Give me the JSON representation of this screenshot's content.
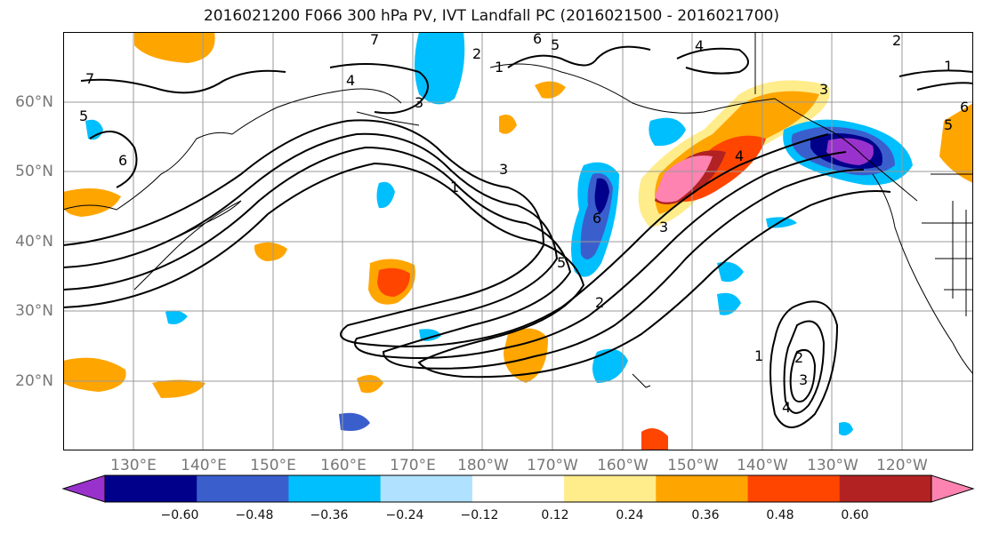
{
  "title": "2016021200 F066 300 hPa PV, IVT Landfall PC (2016021500 - 2016021700)",
  "lat_labels": [
    "60°N",
    "50°N",
    "40°N",
    "30°N",
    "20°N"
  ],
  "lon_labels": [
    "130°E",
    "140°E",
    "150°E",
    "160°E",
    "170°E",
    "180°W",
    "170°W",
    "160°W",
    "150°W",
    "140°W",
    "130°W",
    "120°W"
  ],
  "colorbar": {
    "colors": [
      "#9932CC",
      "#00008B",
      "#3A5FCD",
      "#00BFFF",
      "#B0E2FF",
      "#FFFFFF",
      "#FFEC8B",
      "#FFA500",
      "#FF4500",
      "#B22222",
      "#FF83B1"
    ],
    "tick_labels": [
      "−0.60",
      "−0.48",
      "−0.36",
      "−0.24",
      "−0.12",
      "0.12",
      "0.24",
      "0.36",
      "0.48",
      "0.60"
    ]
  },
  "contour_labels": [
    "7",
    "6",
    "5",
    "4",
    "3",
    "2",
    "1",
    "7",
    "6",
    "5",
    "4",
    "3",
    "2",
    "1",
    "6",
    "5",
    "4",
    "3",
    "2",
    "1",
    "4",
    "3",
    "2",
    "1",
    "3",
    "4",
    "5",
    "6"
  ]
}
